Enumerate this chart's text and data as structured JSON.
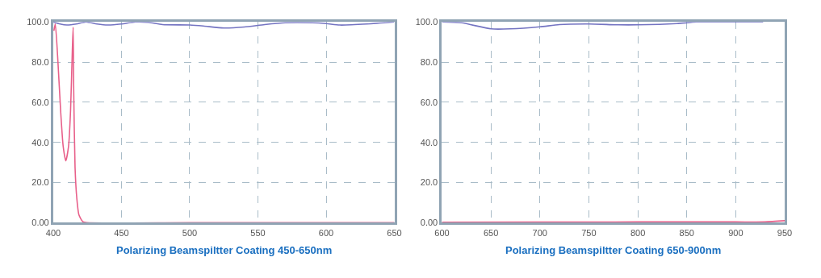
{
  "chart_data": [
    {
      "type": "line",
      "title": "Polarizing Beamspiltter Coating 450-650nm",
      "xlim": [
        400,
        650
      ],
      "xticks": [
        400,
        450,
        500,
        550,
        600,
        650
      ],
      "ylim": [
        0,
        100
      ],
      "yticks": [
        {
          "value": 0,
          "label": "0.00"
        },
        {
          "value": 20,
          "label": "20.0"
        },
        {
          "value": 40,
          "label": "40.0"
        },
        {
          "value": 60,
          "label": "60.0"
        },
        {
          "value": 80,
          "label": "80.0"
        },
        {
          "value": 100,
          "label": "100.0"
        }
      ],
      "grid": true,
      "series": [
        {
          "color": "#7474c2",
          "x": [
            400,
            405,
            410,
            417,
            424,
            432,
            440,
            450,
            460,
            470,
            480,
            500,
            510,
            525,
            540,
            555,
            570,
            590,
            600,
            610,
            630,
            650
          ],
          "values": [
            100,
            99,
            98.5,
            99,
            100,
            99,
            98.5,
            99,
            100,
            99.8,
            98.7,
            98.5,
            98,
            97,
            97.5,
            98.7,
            99.6,
            99.6,
            99.2,
            98.5,
            99,
            100
          ]
        },
        {
          "color": "#e8608a",
          "x": [
            400.5,
            401.5,
            403.5,
            405.4,
            407.3,
            409.2,
            411.2,
            412.7,
            414,
            414.6,
            415,
            416,
            417.3,
            418.8,
            421.7,
            424.6,
            500,
            650
          ],
          "values": [
            95.7,
            99,
            79.5,
            56,
            38,
            30.8,
            38,
            56,
            86,
            97.4,
            66.5,
            27.5,
            12,
            4,
            0.5,
            0,
            0,
            0
          ]
        }
      ]
    },
    {
      "type": "line",
      "title": "Polarizing Beamspiltter Coating 650-900nm",
      "xlim": [
        600,
        950
      ],
      "xticks": [
        600,
        650,
        700,
        750,
        800,
        850,
        900,
        950
      ],
      "ylim": [
        0,
        100
      ],
      "yticks": [
        {
          "value": 0,
          "label": "0.00"
        },
        {
          "value": 20,
          "label": "20.0"
        },
        {
          "value": 40,
          "label": "40.0"
        },
        {
          "value": 60,
          "label": "60.0"
        },
        {
          "value": 80,
          "label": "80.0"
        },
        {
          "value": 100,
          "label": "100.0"
        }
      ],
      "grid": true,
      "series": [
        {
          "color": "#7474c2",
          "x": [
            600,
            620,
            650,
            670,
            700,
            720,
            750,
            780,
            800,
            840,
            860,
            900,
            928
          ],
          "values": [
            100,
            99.6,
            96.6,
            96.6,
            97.6,
            98.7,
            99,
            98.6,
            98.6,
            99.2,
            100,
            100,
            100
          ]
        },
        {
          "color": "#e8608a",
          "x": [
            600,
            700,
            800,
            900,
            930,
            950
          ],
          "values": [
            0.2,
            0.3,
            0.4,
            0.4,
            0.4,
            1.0
          ]
        }
      ]
    }
  ]
}
